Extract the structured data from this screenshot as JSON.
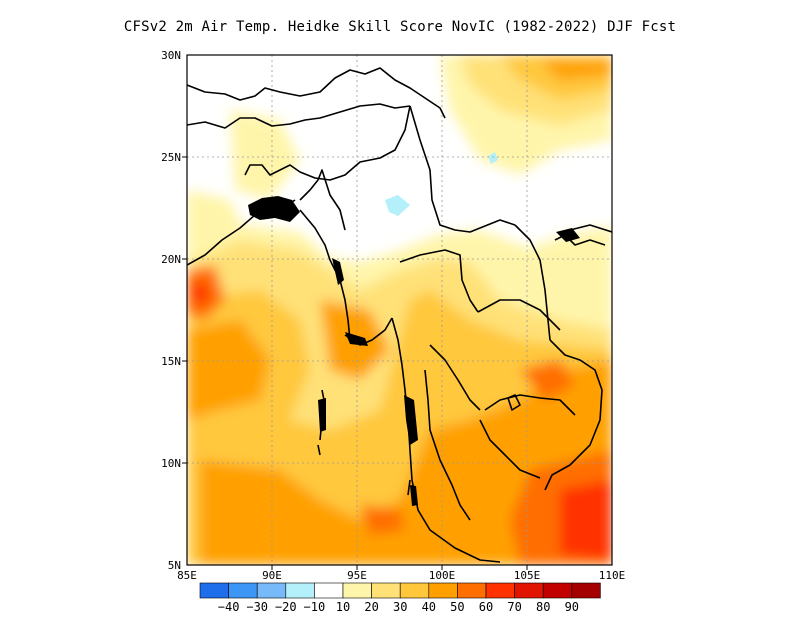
{
  "title": "CFSv2  2m Air Temp. Heidke Skill Score NovIC (1982-2022) DJF Fcst",
  "map": {
    "lon_range": [
      85,
      110
    ],
    "lat_range": [
      5,
      30
    ],
    "lon_ticks": [
      "85E",
      "90E",
      "95E",
      "100E",
      "105E",
      "110E"
    ],
    "lat_ticks": [
      "30N",
      "25N",
      "20N",
      "15N",
      "10N",
      "5N"
    ],
    "grid": true
  },
  "colorbar": {
    "labels": [
      "-40",
      "-30",
      "-20",
      "-10",
      "10",
      "20",
      "30",
      "40",
      "50",
      "60",
      "70",
      "80",
      "90"
    ],
    "colors": [
      "#1e6eeb",
      "#3c96f5",
      "#78b9fa",
      "#b4f0fa",
      "#ffffff",
      "#fff5aa",
      "#ffe178",
      "#ffc83c",
      "#ffa000",
      "#ff6e00",
      "#ff3200",
      "#e11400",
      "#c30000",
      "#a50000"
    ]
  },
  "chart_data": {
    "type": "heatmap",
    "title": "CFSv2  2m Air Temp. Heidke Skill Score NovIC (1982-2022) DJF Fcst",
    "x_range": [
      85,
      110
    ],
    "y_range": [
      5,
      30
    ],
    "legend": "bottom",
    "levels": [
      -40,
      -30,
      -20,
      -10,
      10,
      20,
      30,
      40,
      50,
      60,
      70,
      80,
      90
    ]
  }
}
